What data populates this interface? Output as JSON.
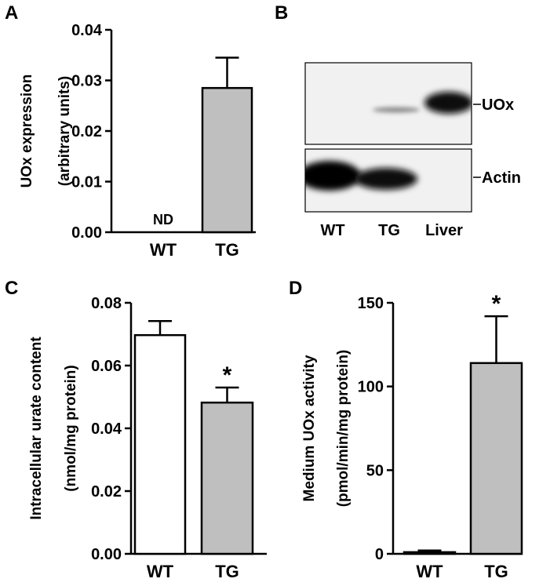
{
  "panels": {
    "a": {
      "letter": "A"
    },
    "b": {
      "letter": "B"
    },
    "c": {
      "letter": "C"
    },
    "d": {
      "letter": "D"
    }
  },
  "blot": {
    "bands": [
      "UOx",
      "Actin"
    ],
    "lanes": [
      "WT",
      "TG",
      "Liver"
    ]
  },
  "chart_data": [
    {
      "panel": "A",
      "type": "bar",
      "ylabel": [
        "UOx expression",
        "(arbitrary units)"
      ],
      "ylim": [
        0,
        0.04
      ],
      "yticks": [
        "0.00",
        "0.01",
        "0.02",
        "0.03",
        "0.04"
      ],
      "categories": [
        "WT",
        "TG"
      ],
      "values": [
        0,
        0.0285
      ],
      "errors": [
        0,
        0.006
      ],
      "fills": [
        "#ffffff",
        "#bfbfbf"
      ],
      "annotations": [
        "ND",
        ""
      ]
    },
    {
      "panel": "C",
      "type": "bar",
      "ylabel": [
        "Intracellular urate content",
        "(nmol/mg protein)"
      ],
      "ylim": [
        0,
        0.08
      ],
      "yticks": [
        "0.00",
        "0.02",
        "0.04",
        "0.06",
        "0.08"
      ],
      "categories": [
        "WT",
        "TG"
      ],
      "values": [
        0.0697,
        0.0482
      ],
      "errors": [
        0.0045,
        0.0048
      ],
      "fills": [
        "#ffffff",
        "#bfbfbf"
      ],
      "annotations": [
        "",
        "*"
      ]
    },
    {
      "panel": "D",
      "type": "bar",
      "ylabel": [
        "Medium UOx activity",
        "(pmol/min/mg protein)"
      ],
      "ylim": [
        0,
        150
      ],
      "yticks": [
        "0",
        "50",
        "100",
        "150"
      ],
      "categories": [
        "WT",
        "TG"
      ],
      "values": [
        1,
        114
      ],
      "errors": [
        1,
        28
      ],
      "fills": [
        "#ffffff",
        "#bfbfbf"
      ],
      "annotations": [
        "",
        "*"
      ]
    }
  ]
}
